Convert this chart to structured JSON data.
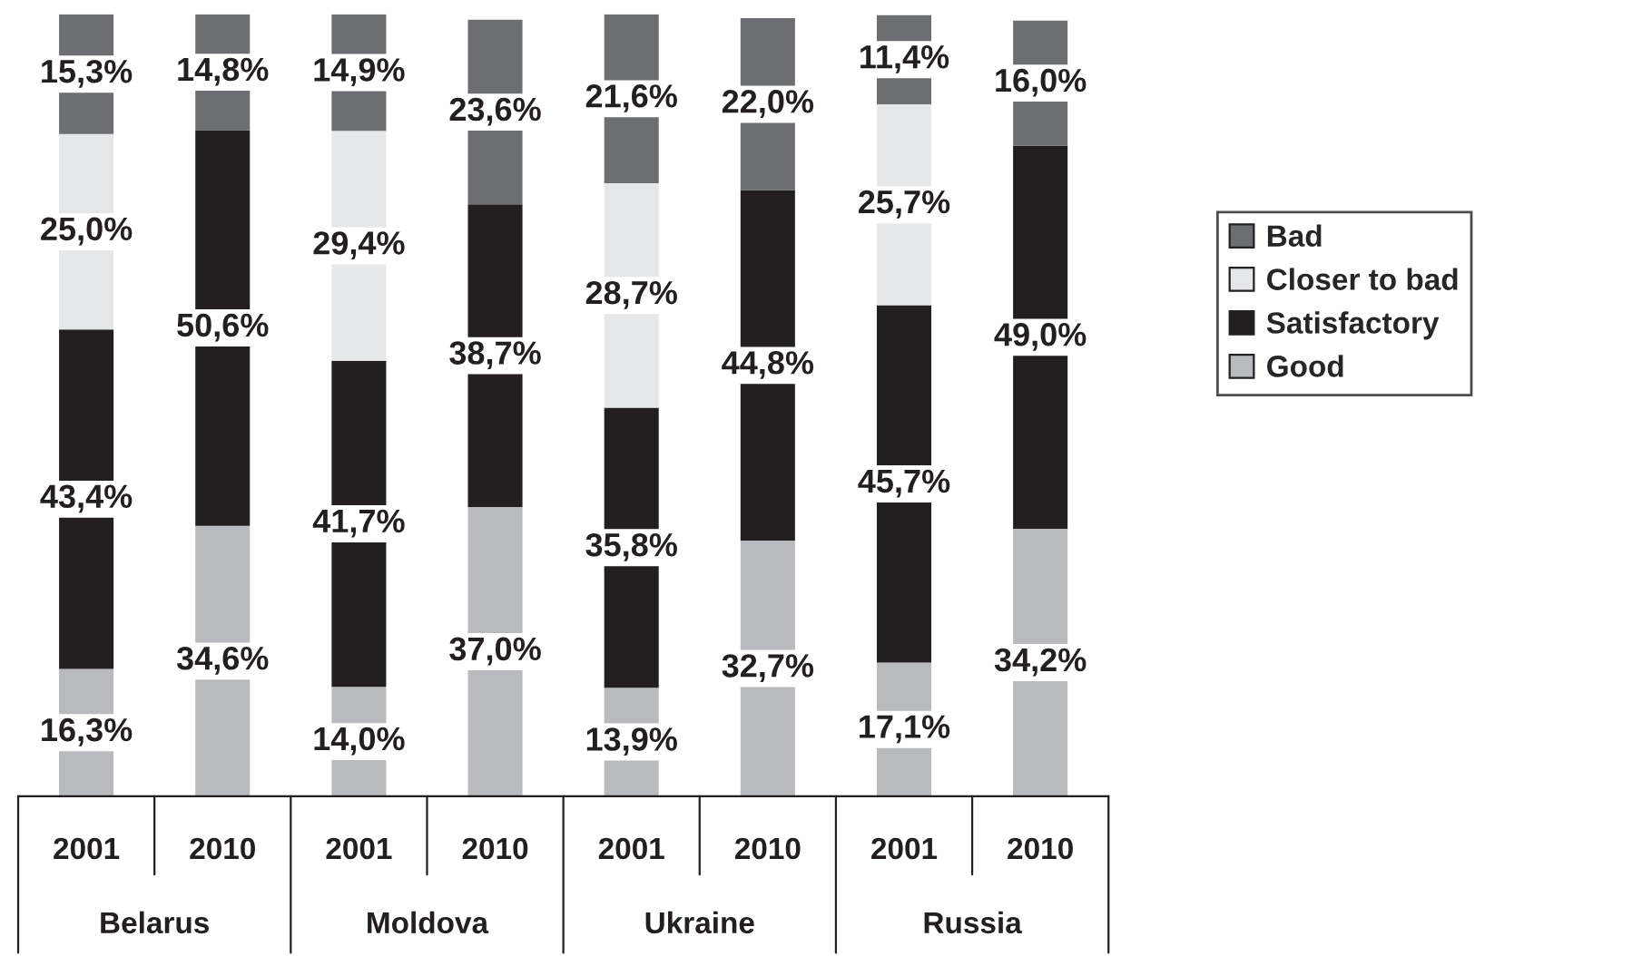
{
  "chart_data": {
    "type": "bar",
    "stacked": true,
    "categories": [
      "2001",
      "2010",
      "2001",
      "2010",
      "2001",
      "2010",
      "2001",
      "2010"
    ],
    "annotations": [
      "Belarus",
      "Moldova",
      "Ukraine",
      "Russia"
    ],
    "series": [
      {
        "name": "Good",
        "color": "#b9babd",
        "values": [
          16.3,
          34.6,
          14.0,
          37.0,
          13.9,
          32.7,
          17.1,
          34.2
        ],
        "value_labels": [
          "16,3%",
          "34,6%",
          "14,0%",
          "37,0%",
          "13,9%",
          "32,7%",
          "17,1%",
          "34,2%"
        ]
      },
      {
        "name": "Satisfactory",
        "color": "#231f20",
        "values": [
          43.4,
          50.6,
          41.7,
          38.7,
          35.8,
          44.8,
          45.7,
          49.0
        ],
        "value_labels": [
          "43,4%",
          "50,6%",
          "41,7%",
          "38,7%",
          "35,8%",
          "44,8%",
          "45,7%",
          "49,0%"
        ]
      },
      {
        "name": "Closer to bad",
        "color": "#e6e7e8",
        "values": [
          25.0,
          null,
          29.4,
          null,
          28.7,
          null,
          25.7,
          null
        ],
        "value_labels": [
          "25,0%",
          null,
          "29,4%",
          null,
          "28,7%",
          null,
          "25,7%",
          null
        ]
      },
      {
        "name": "Bad",
        "color": "#6d6e71",
        "values": [
          15.3,
          14.8,
          14.9,
          23.6,
          21.6,
          22.0,
          11.4,
          16.0
        ],
        "value_labels": [
          "15,3%",
          "14,8%",
          "14,9%",
          "23,6%",
          "21,6%",
          "22,0%",
          "11,4%",
          "16,0%"
        ]
      }
    ],
    "legend": "right"
  }
}
